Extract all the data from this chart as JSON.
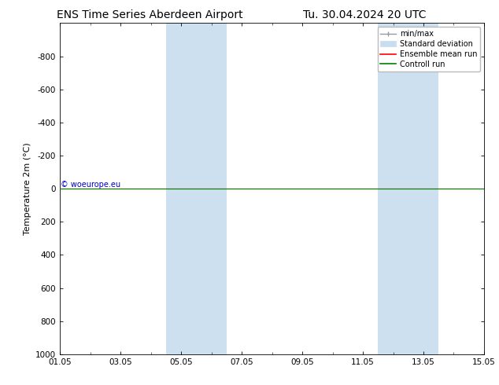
{
  "title_left": "ENS Time Series Aberdeen Airport",
  "title_right": "Tu. 30.04.2024 20 UTC",
  "ylabel": "Temperature 2m (°C)",
  "ylim_bottom": 1000,
  "ylim_top": -1000,
  "yticks": [
    -800,
    -600,
    -400,
    -200,
    0,
    200,
    400,
    600,
    800,
    1000
  ],
  "xtick_labels": [
    "01.05",
    "03.05",
    "05.05",
    "07.05",
    "09.05",
    "11.05",
    "13.05",
    "15.05"
  ],
  "xtick_positions": [
    0,
    2,
    4,
    6,
    8,
    10,
    12,
    14
  ],
  "xlim": [
    0,
    14
  ],
  "bg_color": "#ffffff",
  "plot_bg_color": "#ffffff",
  "shaded_bands": [
    {
      "x_start": 3.5,
      "x_end": 4.5,
      "color": "#cde0f0"
    },
    {
      "x_start": 4.5,
      "x_end": 5.5,
      "color": "#cde0f0"
    },
    {
      "x_start": 10.5,
      "x_end": 11.5,
      "color": "#cde0f0"
    },
    {
      "x_start": 11.5,
      "x_end": 12.5,
      "color": "#cde0f0"
    }
  ],
  "red_line_color": "#ff0000",
  "green_line_color": "#008000",
  "minmax_color": "#999999",
  "stddev_color": "#c8ddef",
  "watermark_text": "© woeurope.eu",
  "watermark_color": "#0000cc",
  "legend_labels": [
    "min/max",
    "Standard deviation",
    "Ensemble mean run",
    "Controll run"
  ],
  "legend_line_colors": [
    "#999999",
    "#c8ddef",
    "#ff0000",
    "#008000"
  ],
  "title_fontsize": 10,
  "axis_label_fontsize": 8,
  "tick_fontsize": 7.5,
  "legend_fontsize": 7
}
